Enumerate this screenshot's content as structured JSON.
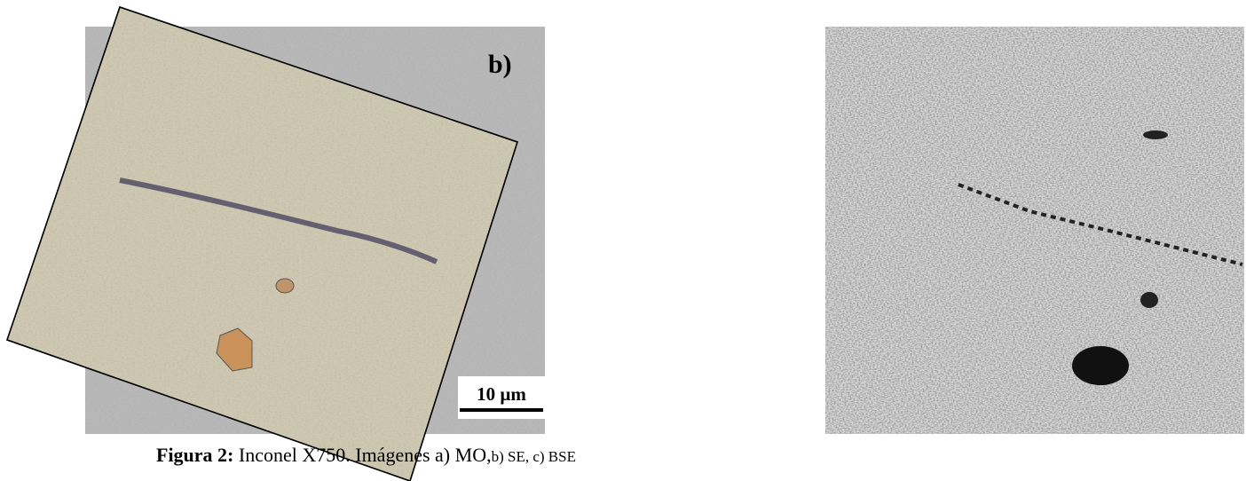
{
  "figure": {
    "panel_label": "b)",
    "scale_bar": "10 µm",
    "caption": {
      "label": "Figura 2:",
      "text": " Inconel X750. Imágenes a) MO,",
      "text_small": "b) SE, c) BSE"
    }
  }
}
